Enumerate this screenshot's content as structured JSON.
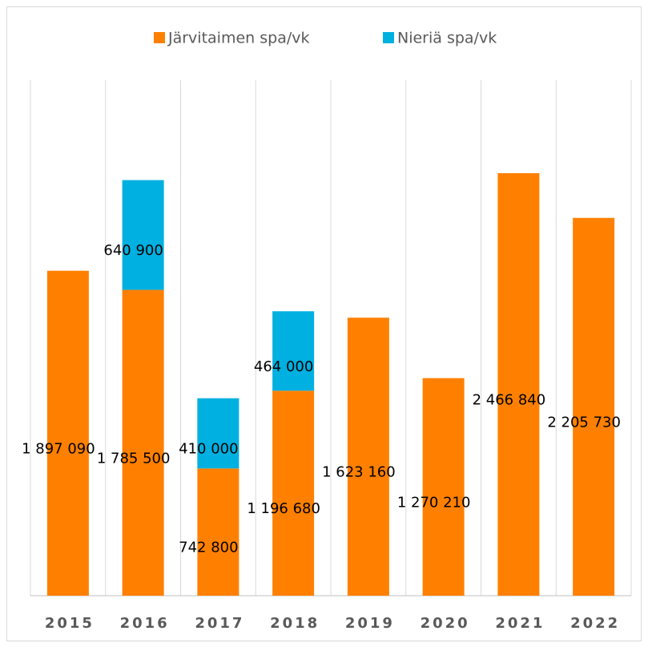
{
  "chart_data": {
    "type": "stacked_bar",
    "categories": [
      "2015",
      "2016",
      "2017",
      "2018",
      "2019",
      "2020",
      "2021",
      "2022"
    ],
    "series": [
      {
        "name": "Järvitaimen spa/vk",
        "color": "#ff8000",
        "values": [
          1897090,
          1785500,
          742800,
          1196680,
          1623160,
          1270210,
          2466840,
          2205730
        ],
        "value_labels": [
          "1 897 090",
          "1 785 500",
          "742 800",
          "1 196 680",
          "1 623 160",
          "1 270 210",
          "2 466 840",
          "2 205 730"
        ]
      },
      {
        "name": "Nieriä spa/vk",
        "color": "#00b0e0",
        "values": [
          null,
          640900,
          410000,
          464000,
          null,
          null,
          null,
          null
        ],
        "value_labels": [
          null,
          "640 900",
          "410 000",
          "464 000",
          null,
          null,
          null,
          null
        ]
      }
    ],
    "legend": "top",
    "grid": "vertical"
  }
}
